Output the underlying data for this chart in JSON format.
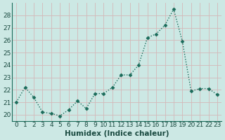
{
  "x": [
    0,
    1,
    2,
    3,
    4,
    5,
    6,
    7,
    8,
    9,
    10,
    11,
    12,
    13,
    14,
    15,
    16,
    17,
    18,
    19,
    20,
    21,
    22,
    23
  ],
  "y": [
    21.0,
    22.2,
    21.4,
    20.2,
    20.1,
    19.9,
    20.4,
    21.1,
    20.5,
    21.7,
    21.7,
    22.2,
    23.2,
    23.2,
    24.0,
    26.2,
    26.5,
    27.2,
    28.5,
    25.9,
    21.9,
    22.1,
    22.1,
    21.6
  ],
  "line_color": "#1a6b5a",
  "marker": "D",
  "markersize": 2.5,
  "linewidth": 1.0,
  "xlabel": "Humidex (Indice chaleur)",
  "xlim": [
    -0.5,
    23.5
  ],
  "ylim": [
    19.5,
    29.0
  ],
  "yticks": [
    20,
    21,
    22,
    23,
    24,
    25,
    26,
    27,
    28
  ],
  "xticks": [
    0,
    1,
    2,
    3,
    4,
    5,
    6,
    7,
    8,
    9,
    10,
    11,
    12,
    13,
    14,
    15,
    16,
    17,
    18,
    19,
    20,
    21,
    22,
    23
  ],
  "grid_color": "#d4b8b8",
  "background_color": "#cce8e4",
  "xlabel_fontsize": 7.5,
  "tick_fontsize": 6.5
}
